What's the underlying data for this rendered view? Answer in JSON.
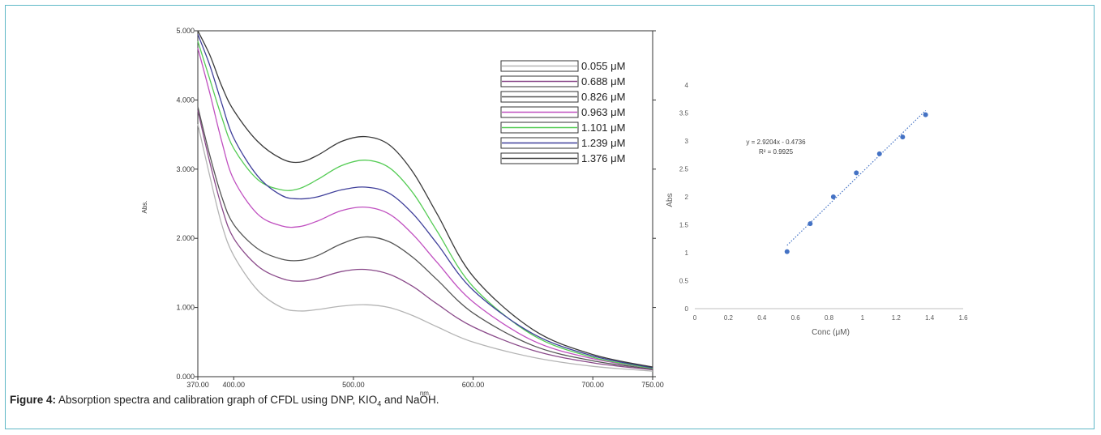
{
  "caption": {
    "label": "Figure 4:",
    "text_before": "Absorption spectra and calibration graph of CFDL using DNP, KIO",
    "subscript": "4",
    "text_after": " and NaOH."
  },
  "chart_data": [
    {
      "type": "line",
      "xlabel": "nm.",
      "ylabel": "Abs.",
      "xlim": [
        370,
        750
      ],
      "ylim": [
        0,
        5
      ],
      "x_ticks": [
        "370.00",
        "400.00",
        "500.00",
        "600.00",
        "700.00",
        "750.00"
      ],
      "y_ticks": [
        "0.000",
        "1.000",
        "2.000",
        "3.000",
        "4.000",
        "5.000"
      ],
      "legend_position": "top-right",
      "x": [
        370,
        380,
        390,
        400,
        420,
        440,
        455,
        470,
        490,
        510,
        530,
        550,
        570,
        600,
        650,
        700,
        750
      ],
      "series": [
        {
          "name": "0.055 μM",
          "color": "#b4b4b4",
          "values": [
            3.65,
            2.9,
            2.2,
            1.75,
            1.25,
            1.0,
            0.95,
            0.97,
            1.02,
            1.04,
            1.0,
            0.88,
            0.72,
            0.5,
            0.28,
            0.15,
            0.08
          ]
        },
        {
          "name": "0.688 μM",
          "color": "#8a4a8a",
          "values": [
            3.85,
            3.1,
            2.45,
            2.0,
            1.6,
            1.42,
            1.38,
            1.42,
            1.52,
            1.55,
            1.48,
            1.3,
            1.05,
            0.72,
            0.38,
            0.2,
            0.1
          ]
        },
        {
          "name": "0.826 μM",
          "color": "#555555",
          "values": [
            3.9,
            3.2,
            2.6,
            2.2,
            1.85,
            1.7,
            1.68,
            1.75,
            1.92,
            2.02,
            1.95,
            1.72,
            1.4,
            0.92,
            0.45,
            0.23,
            0.11
          ]
        },
        {
          "name": "0.963 μM",
          "color": "#c050c0",
          "values": [
            4.75,
            4.1,
            3.4,
            2.85,
            2.35,
            2.18,
            2.17,
            2.25,
            2.4,
            2.45,
            2.35,
            2.05,
            1.65,
            1.08,
            0.52,
            0.26,
            0.12
          ]
        },
        {
          "name": "1.101 μM",
          "color": "#55cc55",
          "values": [
            4.85,
            4.3,
            3.75,
            3.3,
            2.85,
            2.7,
            2.72,
            2.85,
            3.05,
            3.13,
            3.02,
            2.65,
            2.1,
            1.3,
            0.6,
            0.28,
            0.12
          ]
        },
        {
          "name": "1.239 μM",
          "color": "#3f3f9a",
          "values": [
            4.95,
            4.5,
            3.95,
            3.45,
            2.9,
            2.62,
            2.57,
            2.6,
            2.7,
            2.74,
            2.65,
            2.35,
            1.92,
            1.25,
            0.62,
            0.3,
            0.13
          ]
        },
        {
          "name": "1.376 μM",
          "color": "#3a3a3a",
          "values": [
            5.0,
            4.65,
            4.2,
            3.85,
            3.4,
            3.15,
            3.1,
            3.2,
            3.4,
            3.47,
            3.35,
            2.95,
            2.35,
            1.45,
            0.68,
            0.32,
            0.14
          ]
        }
      ]
    },
    {
      "type": "scatter",
      "xlabel": "Conc (μM)",
      "ylabel": "Abs",
      "xlim": [
        0,
        1.6
      ],
      "ylim": [
        0,
        4
      ],
      "x_ticks": [
        "0",
        "0.2",
        "0.4",
        "0.6",
        "0.8",
        "1",
        "1.2",
        "1.4",
        "1.6"
      ],
      "y_ticks": [
        "0",
        "0.5",
        "1",
        "1.5",
        "2",
        "2.5",
        "3",
        "3.5",
        "4"
      ],
      "point_color": "#4472c4",
      "trendline_color": "#4472c4",
      "points": {
        "x": [
          0.55,
          0.688,
          0.826,
          0.963,
          1.101,
          1.239,
          1.376
        ],
        "y": [
          1.02,
          1.52,
          2.0,
          2.43,
          2.77,
          3.07,
          3.47
        ]
      },
      "trendline": {
        "slope": 2.9204,
        "intercept": -0.4736,
        "x_range": [
          0.55,
          1.376
        ]
      },
      "equation": "y = 2.9204x - 0.4736",
      "r2": "R² = 0.9925"
    }
  ]
}
